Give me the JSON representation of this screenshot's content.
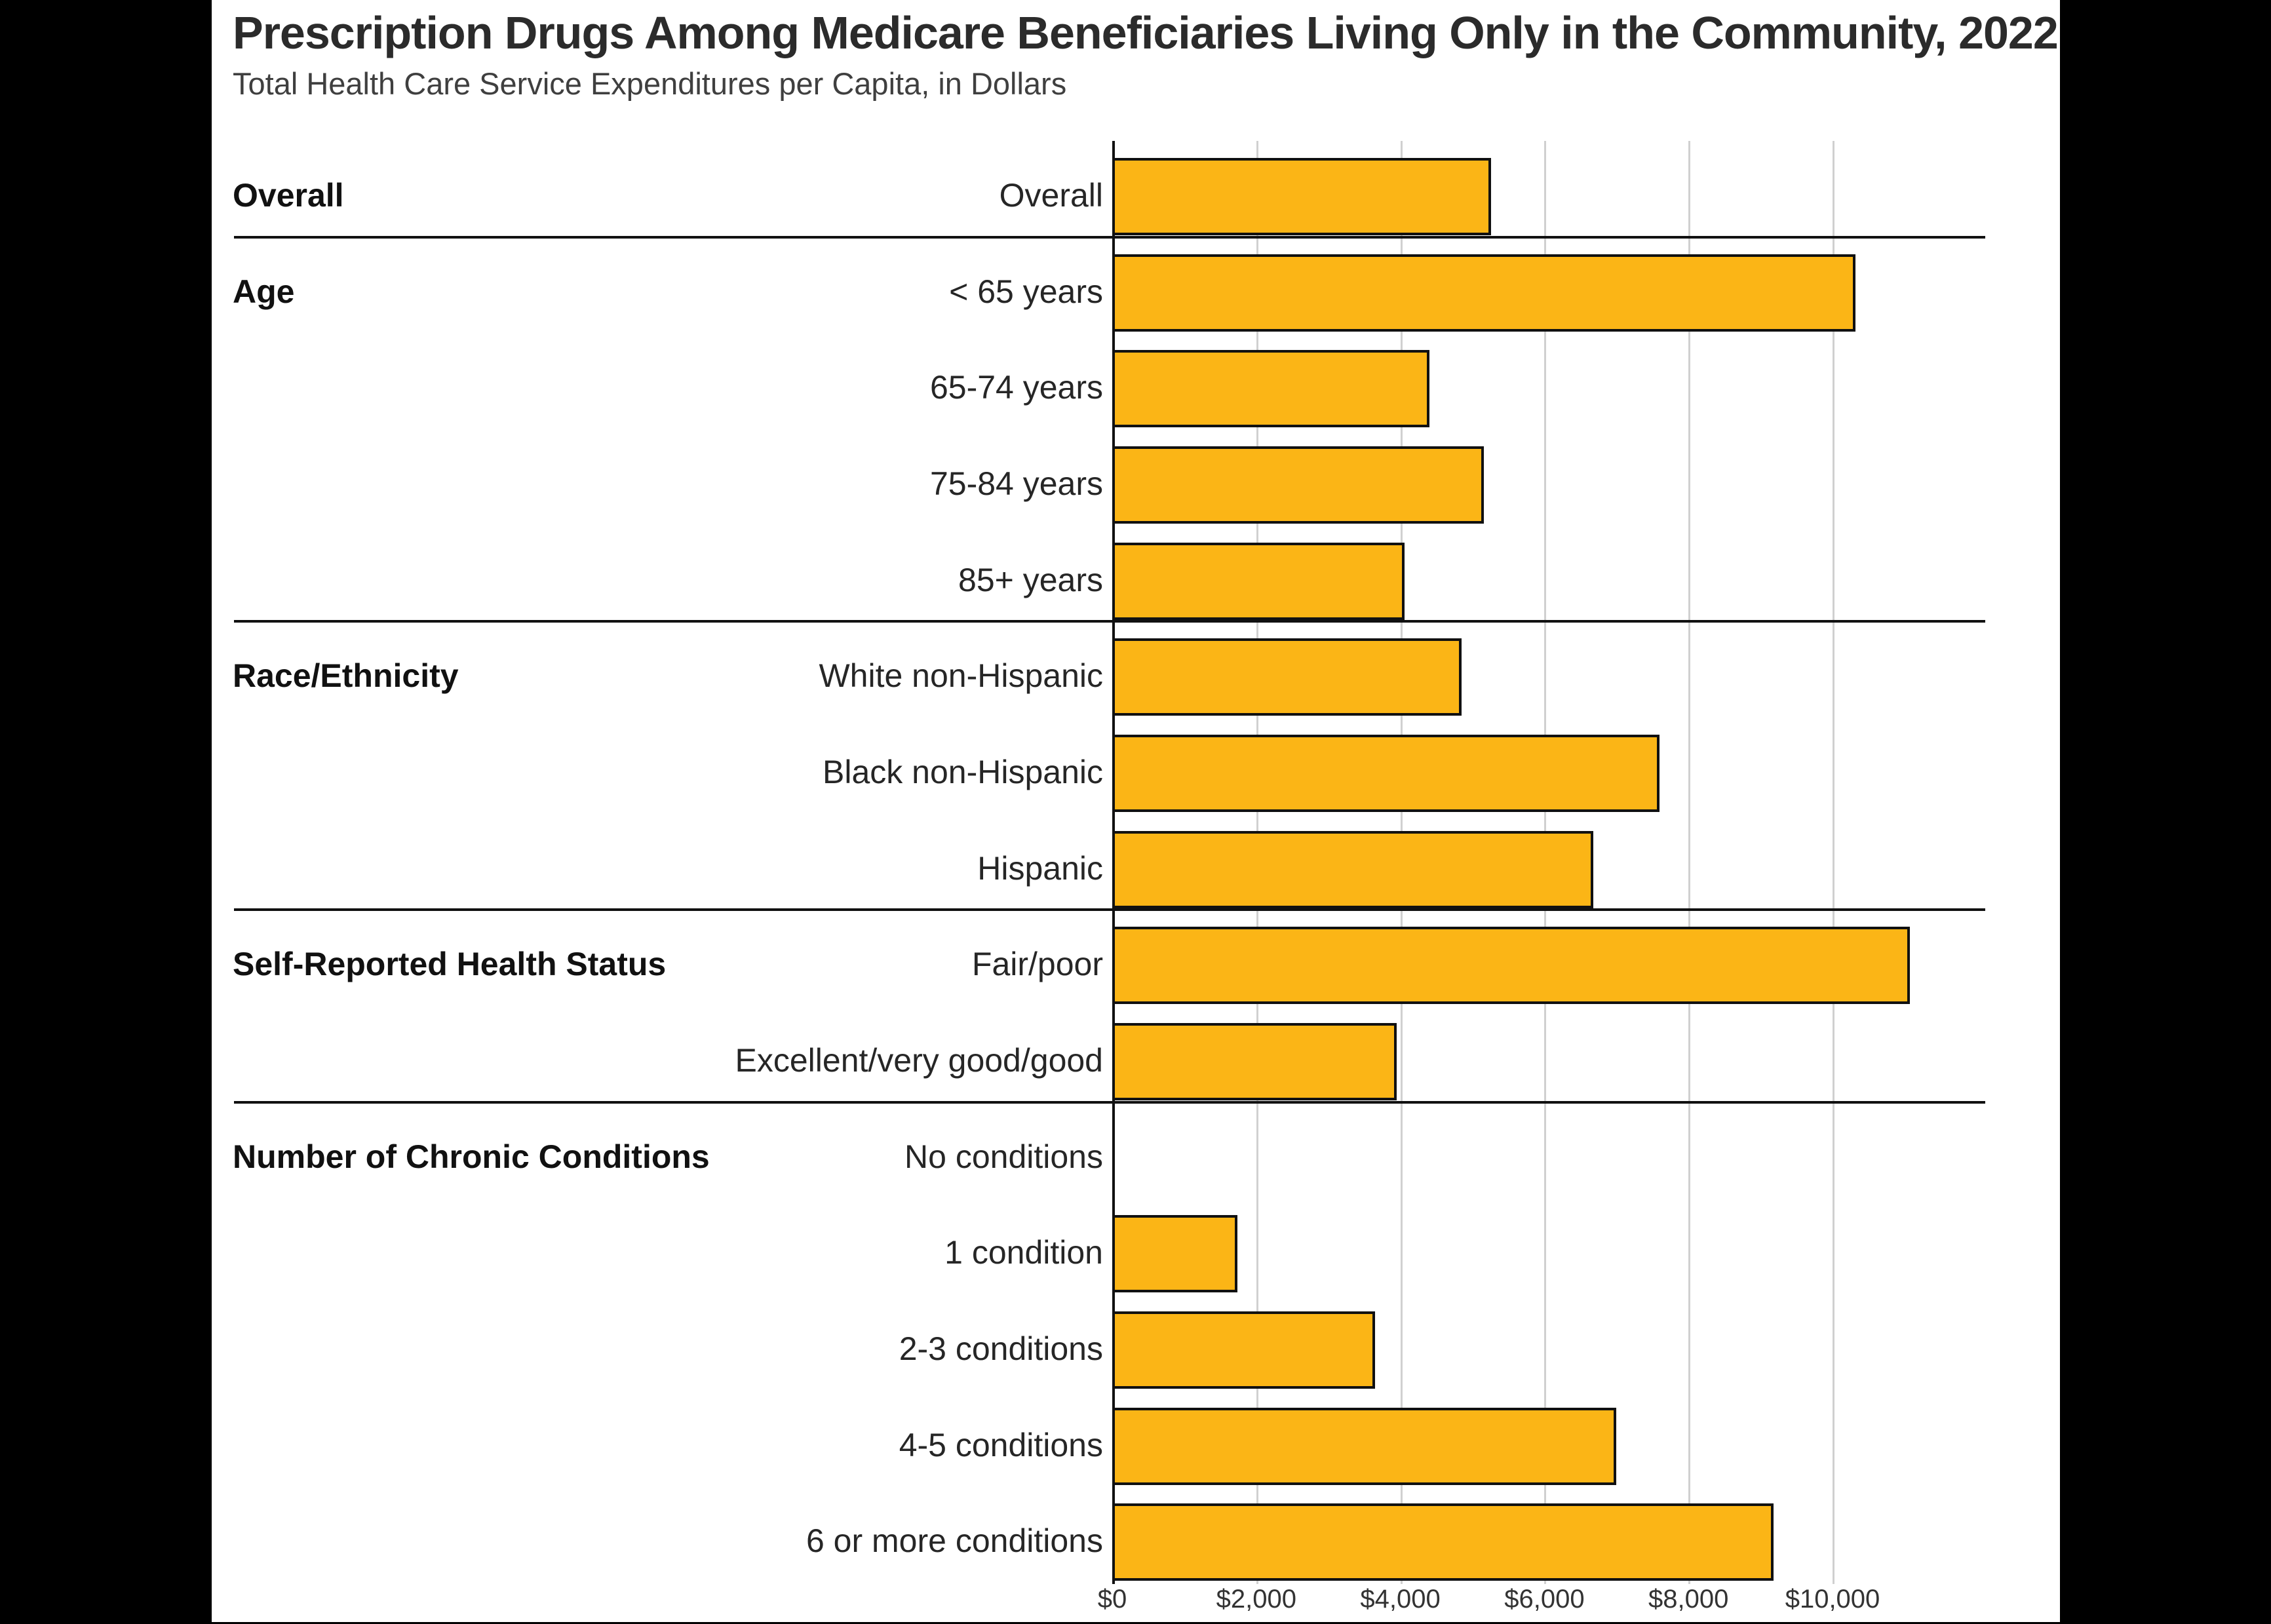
{
  "header": {
    "title": "Prescription Drugs Among Medicare Beneficiaries Living Only in the Community, 2022",
    "subtitle": "Total Health Care Service Expenditures per Capita, in Dollars"
  },
  "chart_data": {
    "type": "bar",
    "orientation": "horizontal",
    "title": "Prescription Drugs Among Medicare Beneficiaries Living Only in the Community, 2022",
    "subtitle": "Total Health Care Service Expenditures per Capita, in Dollars",
    "unit": "dollars per capita",
    "x_axis": {
      "tick_labels": [
        "$0",
        "$2,000",
        "$4,000",
        "$6,000",
        "$8,000",
        "$10,000"
      ],
      "tick_values": [
        0,
        2000,
        4000,
        6000,
        8000,
        10000
      ],
      "range": [
        0,
        12100
      ],
      "gridlines": true
    },
    "groups": [
      {
        "label": "Overall",
        "rows": [
          {
            "label": "Overall",
            "value": 5260
          }
        ]
      },
      {
        "label": "Age",
        "rows": [
          {
            "label": "< 65 years",
            "value": 10320
          },
          {
            "label": "65-74 years",
            "value": 4400
          },
          {
            "label": "75-84 years",
            "value": 5160
          },
          {
            "label": "85+ years",
            "value": 4060
          }
        ]
      },
      {
        "label": "Race/Ethnicity",
        "rows": [
          {
            "label": "White non-Hispanic",
            "value": 4850
          },
          {
            "label": "Black non-Hispanic",
            "value": 7600
          },
          {
            "label": "Hispanic",
            "value": 6680
          }
        ]
      },
      {
        "label": "Self-Reported Health Status",
        "rows": [
          {
            "label": "Fair/poor",
            "value": 11070
          },
          {
            "label": "Excellent/very good/good",
            "value": 3950
          }
        ]
      },
      {
        "label": "Number of Chronic Conditions",
        "rows": [
          {
            "label": "No conditions",
            "value": 0
          },
          {
            "label": "1 condition",
            "value": 1740
          },
          {
            "label": "2-3 conditions",
            "value": 3650
          },
          {
            "label": "4-5 conditions",
            "value": 7000
          },
          {
            "label": "6 or more conditions",
            "value": 9180
          }
        ]
      }
    ],
    "legend": null,
    "colors": {
      "bar_fill": "#FBB516",
      "bar_border": "#111111",
      "gridline": "#d0d0d0",
      "axis_line": "#111111",
      "separator": "#111111"
    }
  }
}
